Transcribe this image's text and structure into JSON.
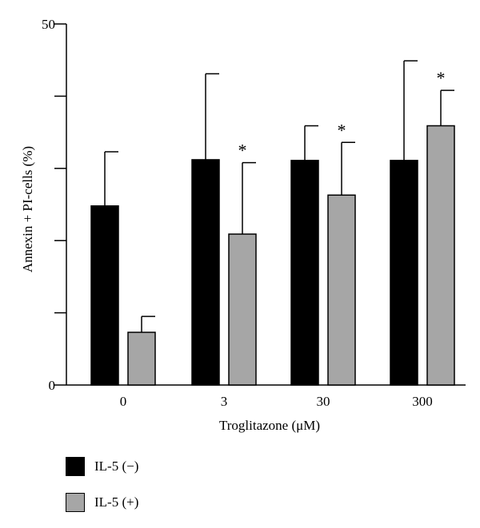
{
  "chart_data": {
    "type": "bar",
    "title": "",
    "xlabel": "Troglitazone (μM)",
    "ylabel": "Annexin + PI-cells (%)",
    "ylim": [
      0,
      50
    ],
    "y_tick_labels": [
      "0",
      "50"
    ],
    "y_ticks": [
      0,
      10,
      20,
      30,
      40,
      50
    ],
    "categories": [
      "0",
      "3",
      "30",
      "300"
    ],
    "series": [
      {
        "name": "IL-5 (−)",
        "color": "#000000",
        "values": [
          24.8,
          31.2,
          31.1,
          31.1
        ],
        "errors": [
          7.5,
          11.9,
          4.8,
          13.8
        ]
      },
      {
        "name": "IL-5 (+)",
        "color": "#a6a6a6",
        "values": [
          7.3,
          20.9,
          26.3,
          35.9
        ],
        "errors": [
          2.2,
          9.9,
          7.3,
          4.9
        ]
      }
    ],
    "annotations": [
      {
        "category": "3",
        "series": 1,
        "text": "*"
      },
      {
        "category": "30",
        "series": 1,
        "text": "*"
      },
      {
        "category": "300",
        "series": 1,
        "text": "*"
      }
    ],
    "grid": false,
    "legend_position": "bottom-left"
  }
}
